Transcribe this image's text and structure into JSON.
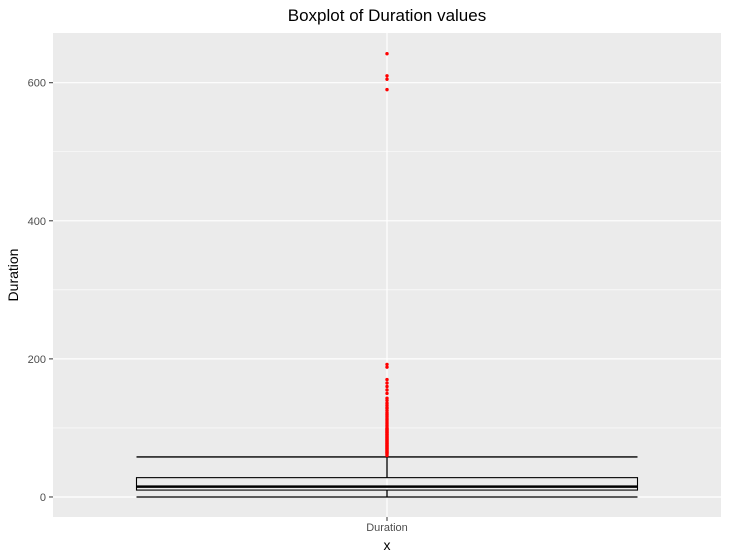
{
  "chart_data": {
    "type": "boxplot",
    "title": "Boxplot of Duration values",
    "xlabel": "x",
    "ylabel": "Duration",
    "categories": [
      "Duration"
    ],
    "ylim": [
      -29,
      672
    ],
    "y_ticks": [
      0,
      200,
      400,
      600
    ],
    "y_tick_labels": [
      "0",
      "200",
      "400",
      "600"
    ],
    "grid": true,
    "panel_background": "#ebebeb",
    "grid_color": "#ffffff",
    "box_color": "#000000",
    "outlier_color": "#ff0000",
    "box": {
      "category": "Duration",
      "whisker_low": 0,
      "q1": 10,
      "median": 15,
      "q3": 28,
      "whisker_high": 58
    },
    "outliers": [
      60,
      62,
      63,
      64,
      65,
      66,
      67,
      68,
      69,
      70,
      71,
      72,
      73,
      74,
      75,
      76,
      77,
      78,
      79,
      80,
      81,
      82,
      83,
      84,
      85,
      86,
      87,
      88,
      89,
      90,
      91,
      92,
      93,
      94,
      95,
      96,
      97,
      98,
      99,
      100,
      102,
      104,
      106,
      108,
      110,
      112,
      114,
      116,
      118,
      120,
      122,
      125,
      128,
      130,
      133,
      136,
      140,
      143,
      150,
      155,
      160,
      165,
      170,
      188,
      192,
      590,
      605,
      610,
      642
    ]
  }
}
